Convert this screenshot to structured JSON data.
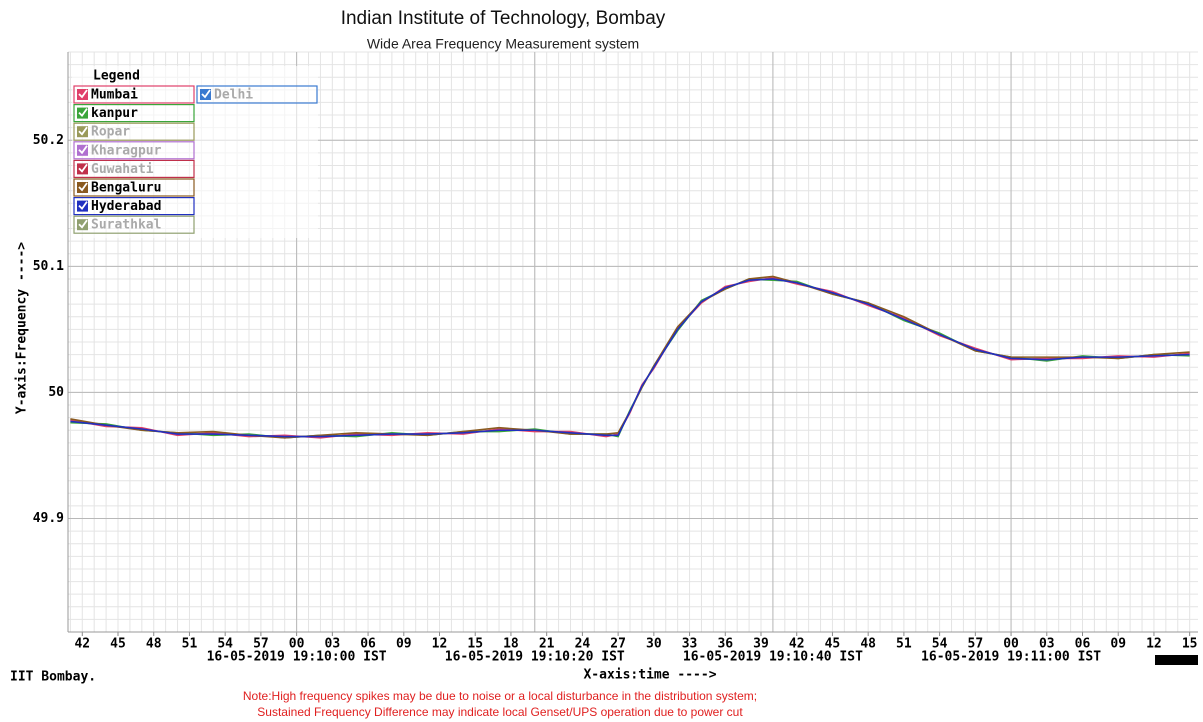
{
  "chart_data": {
    "type": "line",
    "title": "Indian Institute of Technology, Bombay",
    "subtitle": "Wide Area Frequency Measurement system",
    "ylabel": "Y-axis:Frequency ---->",
    "xlabel": "X-axis:time ---->",
    "legend_title": "Legend",
    "footer": "IIT Bombay.",
    "notes": [
      "Note:High frequency spikes may be due to noise or a local disturbance in the distribution system;",
      "Sustained Frequency Difference may indicate local Genset/UPS operation due to power cut"
    ],
    "grid": true,
    "x_minor_step": 1,
    "y_minor_step": 0.01,
    "xlim": [
      40.8,
      135.7
    ],
    "ylim": [
      49.81,
      50.27
    ],
    "yticks": [
      50.2,
      50.1,
      50,
      49.9
    ],
    "xticks": [
      42,
      45,
      48,
      51,
      54,
      57,
      {
        "value": 60,
        "label": "00"
      },
      {
        "value": 63,
        "label": "03"
      },
      {
        "value": 66,
        "label": "06"
      },
      {
        "value": 69,
        "label": "09"
      },
      {
        "value": 72,
        "label": "12"
      },
      {
        "value": 75,
        "label": "15"
      },
      {
        "value": 78,
        "label": "18"
      },
      {
        "value": 81,
        "label": "21"
      },
      {
        "value": 84,
        "label": "24"
      },
      {
        "value": 87,
        "label": "27"
      },
      {
        "value": 90,
        "label": "30"
      },
      {
        "value": 93,
        "label": "33"
      },
      {
        "value": 96,
        "label": "36"
      },
      {
        "value": 99,
        "label": "39"
      },
      {
        "value": 102,
        "label": "42"
      },
      {
        "value": 105,
        "label": "45"
      },
      {
        "value": 108,
        "label": "48"
      },
      {
        "value": 111,
        "label": "51"
      },
      {
        "value": 114,
        "label": "54"
      },
      {
        "value": 117,
        "label": "57"
      },
      {
        "value": 120,
        "label": "00"
      },
      {
        "value": 123,
        "label": "03"
      },
      {
        "value": 126,
        "label": "06"
      },
      {
        "value": 129,
        "label": "09"
      },
      {
        "value": 132,
        "label": "12"
      },
      {
        "value": 135,
        "label": "15"
      }
    ],
    "xmajor_ticks": [
      {
        "value": 60,
        "label": "16-05-2019 19:10:00 IST"
      },
      {
        "value": 80,
        "label": "16-05-2019 19:10:20 IST"
      },
      {
        "value": 100,
        "label": "16-05-2019 19:10:40 IST"
      },
      {
        "value": 120,
        "label": "16-05-2019 19:11:00 IST"
      }
    ],
    "x": [
      41,
      44,
      47,
      50,
      53,
      56,
      59,
      62,
      65,
      68,
      71,
      74,
      77,
      80,
      83,
      86,
      87,
      88,
      89,
      90,
      92,
      94,
      96,
      98,
      100,
      102,
      105,
      108,
      111,
      114,
      117,
      120,
      123,
      126,
      129,
      132,
      135
    ],
    "series": [
      {
        "name": "Mumbai",
        "color": "#e0406a",
        "active": true,
        "values": [
          49.978,
          49.973,
          49.972,
          49.966,
          49.968,
          49.965,
          49.966,
          49.964,
          49.967,
          49.966,
          49.968,
          49.967,
          49.971,
          49.969,
          49.969,
          49.965,
          49.967,
          49.984,
          50.006,
          50.019,
          50.051,
          50.071,
          50.084,
          50.088,
          50.091,
          50.086,
          50.08,
          50.069,
          50.059,
          50.045,
          50.035,
          50.026,
          50.027,
          50.027,
          50.029,
          50.028,
          50.031
        ]
      },
      {
        "name": "Delhi",
        "color": "#3a7ad0",
        "active": false
      },
      {
        "name": "kanpur",
        "color": "#3aa53a",
        "active": true,
        "values": [
          49.976,
          49.975,
          49.97,
          49.968,
          49.966,
          49.967,
          49.964,
          49.966,
          49.965,
          49.968,
          49.966,
          49.969,
          49.969,
          49.971,
          49.967,
          49.967,
          49.965,
          49.986,
          50.004,
          50.021,
          50.049,
          50.073,
          50.082,
          50.09,
          50.089,
          50.088,
          50.078,
          50.071,
          50.057,
          50.047,
          50.033,
          50.028,
          50.025,
          50.029,
          50.027,
          50.03,
          50.029
        ]
      },
      {
        "name": "Ropar",
        "color": "#9a9a5a",
        "active": false
      },
      {
        "name": "Kharagpur",
        "color": "#b070d0",
        "active": false
      },
      {
        "name": "Guwahati",
        "color": "#c0304a",
        "active": false
      },
      {
        "name": "Bengaluru",
        "color": "#8a5a20",
        "active": true,
        "legend_index": 7,
        "values": [
          49.979,
          49.974,
          49.97,
          49.968,
          49.969,
          49.966,
          49.964,
          49.966,
          49.968,
          49.967,
          49.966,
          49.969,
          49.972,
          49.97,
          49.967,
          49.967,
          49.968,
          49.985,
          50.004,
          50.021,
          50.052,
          50.072,
          50.082,
          50.09,
          50.092,
          50.087,
          50.078,
          50.071,
          50.06,
          50.046,
          50.033,
          50.028,
          50.028,
          50.028,
          50.027,
          50.03,
          50.032
        ]
      },
      {
        "name": "Hyderabad",
        "color": "#2030c0",
        "active": true,
        "values": [
          49.977,
          49.974,
          49.971,
          49.967,
          49.967,
          49.966,
          49.965,
          49.965,
          49.966,
          49.967,
          49.967,
          49.968,
          49.97,
          49.97,
          49.968,
          49.966,
          49.966,
          49.985,
          50.005,
          50.02,
          50.05,
          50.072,
          50.083,
          50.089,
          50.09,
          50.087,
          50.079,
          50.07,
          50.058,
          50.046,
          50.034,
          50.027,
          50.026,
          50.028,
          50.028,
          50.029,
          50.03
        ]
      },
      {
        "name": "Surathkal",
        "color": "#90a070",
        "active": false
      }
    ]
  }
}
